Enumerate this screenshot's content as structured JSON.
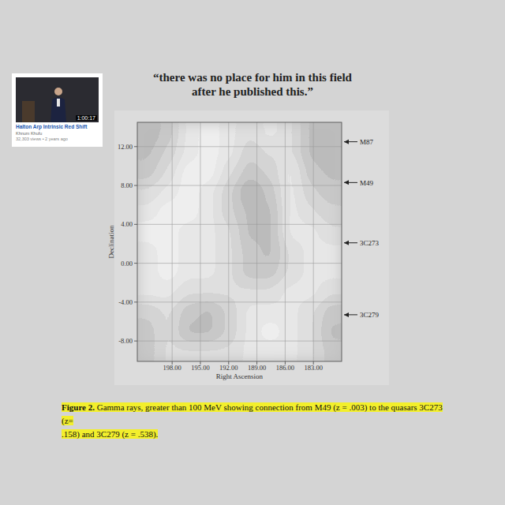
{
  "video_card": {
    "duration": "1:00:17",
    "title": "Halton Arp Intrinsic Red Shift",
    "channel": "Khnum Khufu",
    "meta": "32,303 views • 2 years ago"
  },
  "quote": [
    "“there was no place for him in this field",
    "after he published this.”"
  ],
  "chart_data": {
    "type": "heatmap",
    "xlabel": "Right Ascension",
    "ylabel": "Declination",
    "xlim": [
      201.7,
      180
    ],
    "ylim": [
      -10.1,
      14.5
    ],
    "xticks": [
      {
        "value": 198,
        "label": "198.00"
      },
      {
        "value": 195,
        "label": "195.00"
      },
      {
        "value": 192,
        "label": "192.00"
      },
      {
        "value": 189,
        "label": "189.00"
      },
      {
        "value": 186,
        "label": "186.00"
      },
      {
        "value": 183,
        "label": "183.00"
      }
    ],
    "yticks": [
      {
        "value": 12,
        "label": "12.00"
      },
      {
        "value": 8,
        "label": "8.00"
      },
      {
        "value": 4,
        "label": "4.00"
      },
      {
        "value": 0,
        "label": "0.00"
      },
      {
        "value": -4,
        "label": "-4.00"
      },
      {
        "value": -8,
        "label": "-8.00"
      }
    ],
    "grid": true,
    "x_edges": [
      201.7,
      199.53,
      197.36,
      195.19,
      193.02,
      190.85,
      188.68,
      186.51,
      184.34,
      182.17,
      180
    ],
    "y_edges": [
      14.5,
      12.45,
      10.4,
      8.35,
      6.3,
      4.25,
      2.2,
      0.15,
      -1.9,
      -3.95,
      -6,
      -8.05,
      -10.1
    ],
    "cells": [
      [
        8,
        6,
        3,
        2,
        3,
        4,
        3,
        4,
        7,
        8
      ],
      [
        7,
        5,
        3,
        2,
        3,
        5,
        4,
        4,
        7,
        8
      ],
      [
        6,
        4,
        2,
        2,
        4,
        6,
        5,
        3,
        6,
        7
      ],
      [
        4,
        3,
        2,
        3,
        5,
        9,
        6,
        3,
        5,
        6
      ],
      [
        3,
        2,
        2,
        3,
        5,
        7,
        7,
        3,
        4,
        5
      ],
      [
        2,
        2,
        3,
        3,
        4,
        7,
        7,
        3,
        3,
        4
      ],
      [
        3,
        2,
        3,
        3,
        4,
        6,
        7,
        4,
        3,
        3
      ],
      [
        3,
        2,
        3,
        3,
        4,
        6,
        6,
        4,
        3,
        3
      ],
      [
        3,
        3,
        4,
        4,
        4,
        4,
        4,
        3,
        3,
        4
      ],
      [
        5,
        4,
        6,
        7,
        5,
        3,
        3,
        3,
        4,
        6
      ],
      [
        6,
        4,
        7,
        7,
        5,
        3,
        2,
        3,
        4,
        7
      ],
      [
        6,
        4,
        4,
        4,
        4,
        3,
        3,
        3,
        4,
        6
      ]
    ],
    "annotations": [
      {
        "label": "M87",
        "y": 12.5
      },
      {
        "label": "M49",
        "y": 8.3
      },
      {
        "label": "3C273",
        "y": 2.1
      },
      {
        "label": "3C279",
        "y": -5.3
      }
    ]
  },
  "caption": {
    "label": "Figure 2.",
    "lines": [
      "Gamma rays, greater than 100 MeV showing connection from M49 (z = .003) to the quasars 3C273 (z=",
      ".158) and 3C279 (z = .538)."
    ]
  }
}
